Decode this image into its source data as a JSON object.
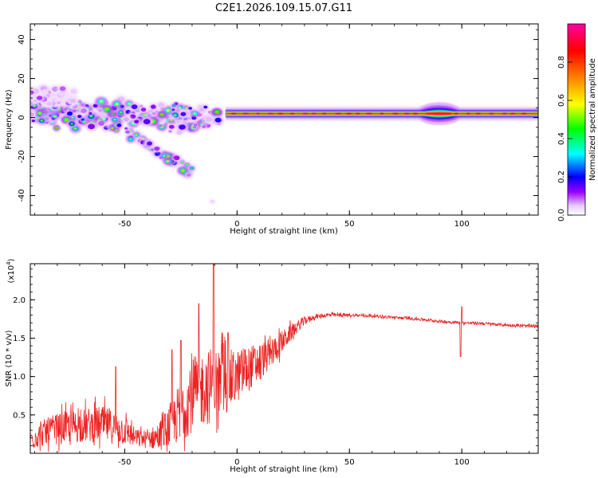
{
  "figure_title": "C2E1.2026.109.15.07.G11",
  "chart_data": [
    {
      "type": "heatmap",
      "title": "C2E1.2026.109.15.07.G11",
      "xlabel": "Height of straight line (km)",
      "ylabel": "Frequency (Hz)",
      "xlim": [
        -92,
        134
      ],
      "ylim": [
        -50,
        48
      ],
      "xticks": [
        -50,
        0,
        50,
        100
      ],
      "yticks": [
        -40,
        -20,
        0,
        20,
        40
      ],
      "xtick_labels": [
        "-50",
        "0",
        "50",
        "100"
      ],
      "ytick_labels": [
        "-40",
        "-20",
        "0",
        "20",
        "40"
      ],
      "colorbar": {
        "label": "Normalized spectral amplitude",
        "range": [
          0,
          1
        ],
        "ticks": [
          0.0,
          0.2,
          0.4,
          0.6,
          0.8
        ],
        "tick_labels": [
          "0.0",
          "0.2",
          "0.4",
          "0.6",
          "0.8"
        ],
        "colormap": [
          "#ffffff",
          "#e0b0ff",
          "#9b00ff",
          "#0000ff",
          "#00ffff",
          "#00ff00",
          "#ffff00",
          "#ff8000",
          "#ff0000",
          "#ff00a0"
        ]
      },
      "features": {
        "main_band_frequency_hz": 2,
        "main_band_start_km": -5,
        "main_band_end_km": 134,
        "main_band_amplitude": 0.9,
        "bulge_center_km": 90,
        "scatter_region_km": [
          -92,
          -8
        ],
        "secondary_track_start": [
          -57,
          -2
        ],
        "secondary_track_end": [
          -20,
          -28
        ],
        "isolated_point": [
          -11,
          -43
        ]
      }
    },
    {
      "type": "line",
      "xlabel": "Height of straight line (km)",
      "ylabel": "SNR (10 * v/v)",
      "multiplier_label": "(x10",
      "multiplier_exp": "4",
      "xlim": [
        -92,
        134
      ],
      "ylim": [
        0,
        2.47
      ],
      "xticks": [
        -50,
        0,
        50,
        100
      ],
      "yticks": [
        0.5,
        1.0,
        1.5,
        2.0
      ],
      "xtick_labels": [
        "-50",
        "0",
        "50",
        "100"
      ],
      "ytick_labels": [
        "0.5",
        "1.0",
        "1.5",
        "2.0"
      ],
      "color": "#ee2222",
      "envelope": {
        "x": [
          -92,
          -85,
          -80,
          -70,
          -60,
          -50,
          -45,
          -40,
          -35,
          -30,
          -25,
          -20,
          -15,
          -10,
          -5,
          0,
          5,
          10,
          15,
          20,
          25,
          30,
          35,
          40,
          50,
          60,
          70,
          80,
          90,
          95,
          100,
          110,
          120,
          134
        ],
        "y": [
          0.18,
          0.28,
          0.32,
          0.36,
          0.38,
          0.3,
          0.2,
          0.18,
          0.22,
          0.35,
          0.55,
          0.75,
          0.85,
          0.9,
          0.92,
          1.0,
          1.1,
          1.2,
          1.3,
          1.45,
          1.6,
          1.73,
          1.78,
          1.8,
          1.8,
          1.79,
          1.77,
          1.75,
          1.72,
          1.71,
          1.7,
          1.69,
          1.67,
          1.65
        ],
        "noise": [
          0.14,
          0.18,
          0.2,
          0.22,
          0.24,
          0.2,
          0.12,
          0.12,
          0.18,
          0.3,
          0.4,
          0.48,
          0.5,
          0.5,
          0.45,
          0.35,
          0.3,
          0.25,
          0.2,
          0.15,
          0.1,
          0.05,
          0.03,
          0.03,
          0.02,
          0.02,
          0.02,
          0.02,
          0.02,
          0.02,
          0.02,
          0.02,
          0.02,
          0.02
        ]
      },
      "peaks": [
        [
          -10.5,
          2.47
        ],
        [
          -17,
          1.95
        ],
        [
          -25,
          1.47
        ],
        [
          -54,
          1.13
        ],
        [
          -29,
          1.35
        ],
        [
          -4,
          1.57
        ]
      ],
      "dips": [
        [
          99.5,
          1.26
        ]
      ],
      "spikes": [
        [
          100,
          1.91
        ]
      ]
    }
  ]
}
